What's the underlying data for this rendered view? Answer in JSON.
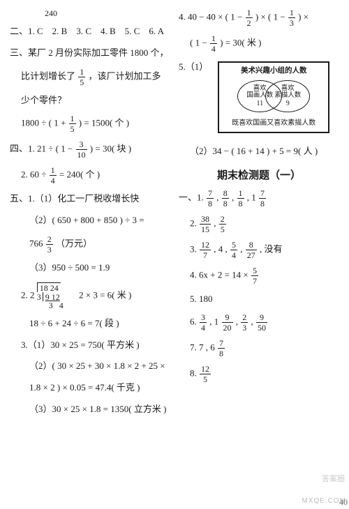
{
  "leftCol": {
    "pageNum": "240",
    "section2": "二、1. C　2. B　3. C　4. B　5. C　6. A",
    "section3": {
      "l1": "三、某厂 2 月份实际加工零件 1800 个，",
      "l2a": "比计划增长了",
      "l2b": "，该厂计划加工多",
      "l3": "少个零件？",
      "eq_a": "1800 ÷ ( 1 + ",
      "eq_b": " ) = 1500( 个 )"
    },
    "section4": {
      "l1a": "四、1. 21 ÷ ( 1 − ",
      "l1b": " ) = 30( 块 )",
      "l2a": "2. 60 ÷ ",
      "l2b": " = 240( 个 )"
    },
    "section5": {
      "l1": "五、1.（1）化工一厂税收增长快",
      "l2": "（2）( 650 + 800 + 850 ) ÷ 3 =",
      "l3a": "766 ",
      "l3b": "（万元）",
      "l4": "（3）950 ÷ 500 = 1.9",
      "l5b": "　2 × 3 = 6( 米 )",
      "l6": "18 ÷ 6 + 24 ÷ 6 = 7( 段 )",
      "l7": "3.（1）30 × 25 = 750( 平方米 )",
      "l8": "（2）( 30 × 25 + 30 × 1.8 × 2 + 25 ×",
      "l9": "1.8 × 2 ) × 0.05 = 47.4( 千克 )",
      "l10": "（3）30 × 25 × 1.8 = 1350( 立方米 )"
    },
    "ldiv": {
      "divisor": "3",
      "dividend": "18 24",
      "sub": "9 12",
      "rem": "3 4",
      "prefix": "2. 2"
    },
    "fracs": {
      "oneFifth": {
        "n": "1",
        "d": "5"
      },
      "threeTenth": {
        "n": "3",
        "d": "10"
      },
      "oneQuarter": {
        "n": "1",
        "d": "4"
      },
      "twoThird": {
        "n": "2",
        "d": "3"
      }
    }
  },
  "rightCol": {
    "q4": {
      "l1a": "4. 40 − 40 × ( 1 − ",
      "l1b": " ) × ( 1 − ",
      "l1c": " ) ×",
      "l2a": "( 1 − ",
      "l2b": " ) = 30( 米 )"
    },
    "q5": {
      "label": "5.（1）",
      "vennTitle": "美术兴趣小组的人数",
      "leftLabel1": "喜欢",
      "leftLabel2": "国画人数",
      "leftNum": "11",
      "rightLabel1": "喜欢",
      "rightLabel2": "素描人数",
      "rightNum": "9",
      "vennFoot": "既喜欢国画又喜欢素描人数",
      "l2": "（2）34 − ( 16 + 14 ) + 5 = 9( 人 )"
    },
    "finalTitle": "期末检测题（一）",
    "sec1": {
      "l1a": "一、1. ",
      "comma": " , ",
      "mixedInt": "1",
      "l2": "2. ",
      "l3a": "3. ",
      "l3b": " , 4 , ",
      "l3c": " , ",
      "l3d": " , 没有",
      "l4a": "4. 6x + 2 = 14 × ",
      "l5": "5. 180",
      "l6a": "6. ",
      "l7a": "7. 7 , 6",
      "l8a": "8. "
    },
    "fracs": {
      "half": {
        "n": "1",
        "d": "2"
      },
      "third": {
        "n": "1",
        "d": "3"
      },
      "quarter": {
        "n": "1",
        "d": "4"
      },
      "f7_8": {
        "n": "7",
        "d": "8"
      },
      "f8_8": {
        "n": "8",
        "d": "8"
      },
      "f1_8": {
        "n": "1",
        "d": "8"
      },
      "f38_15": {
        "n": "38",
        "d": "15"
      },
      "f2_5": {
        "n": "2",
        "d": "5"
      },
      "f12_7": {
        "n": "12",
        "d": "7"
      },
      "f5_4": {
        "n": "5",
        "d": "4"
      },
      "f8_27": {
        "n": "8",
        "d": "27"
      },
      "f5_7": {
        "n": "5",
        "d": "7"
      },
      "f3_4": {
        "n": "3",
        "d": "4"
      },
      "f9_20": {
        "n": "9",
        "d": "20"
      },
      "f2_3": {
        "n": "2",
        "d": "3"
      },
      "f9_50": {
        "n": "9",
        "d": "50"
      },
      "f12_5": {
        "n": "12",
        "d": "5"
      }
    }
  },
  "watermarks": {
    "w1": "答案圈",
    "w2": "MXQE.COM",
    "corner": "40"
  }
}
